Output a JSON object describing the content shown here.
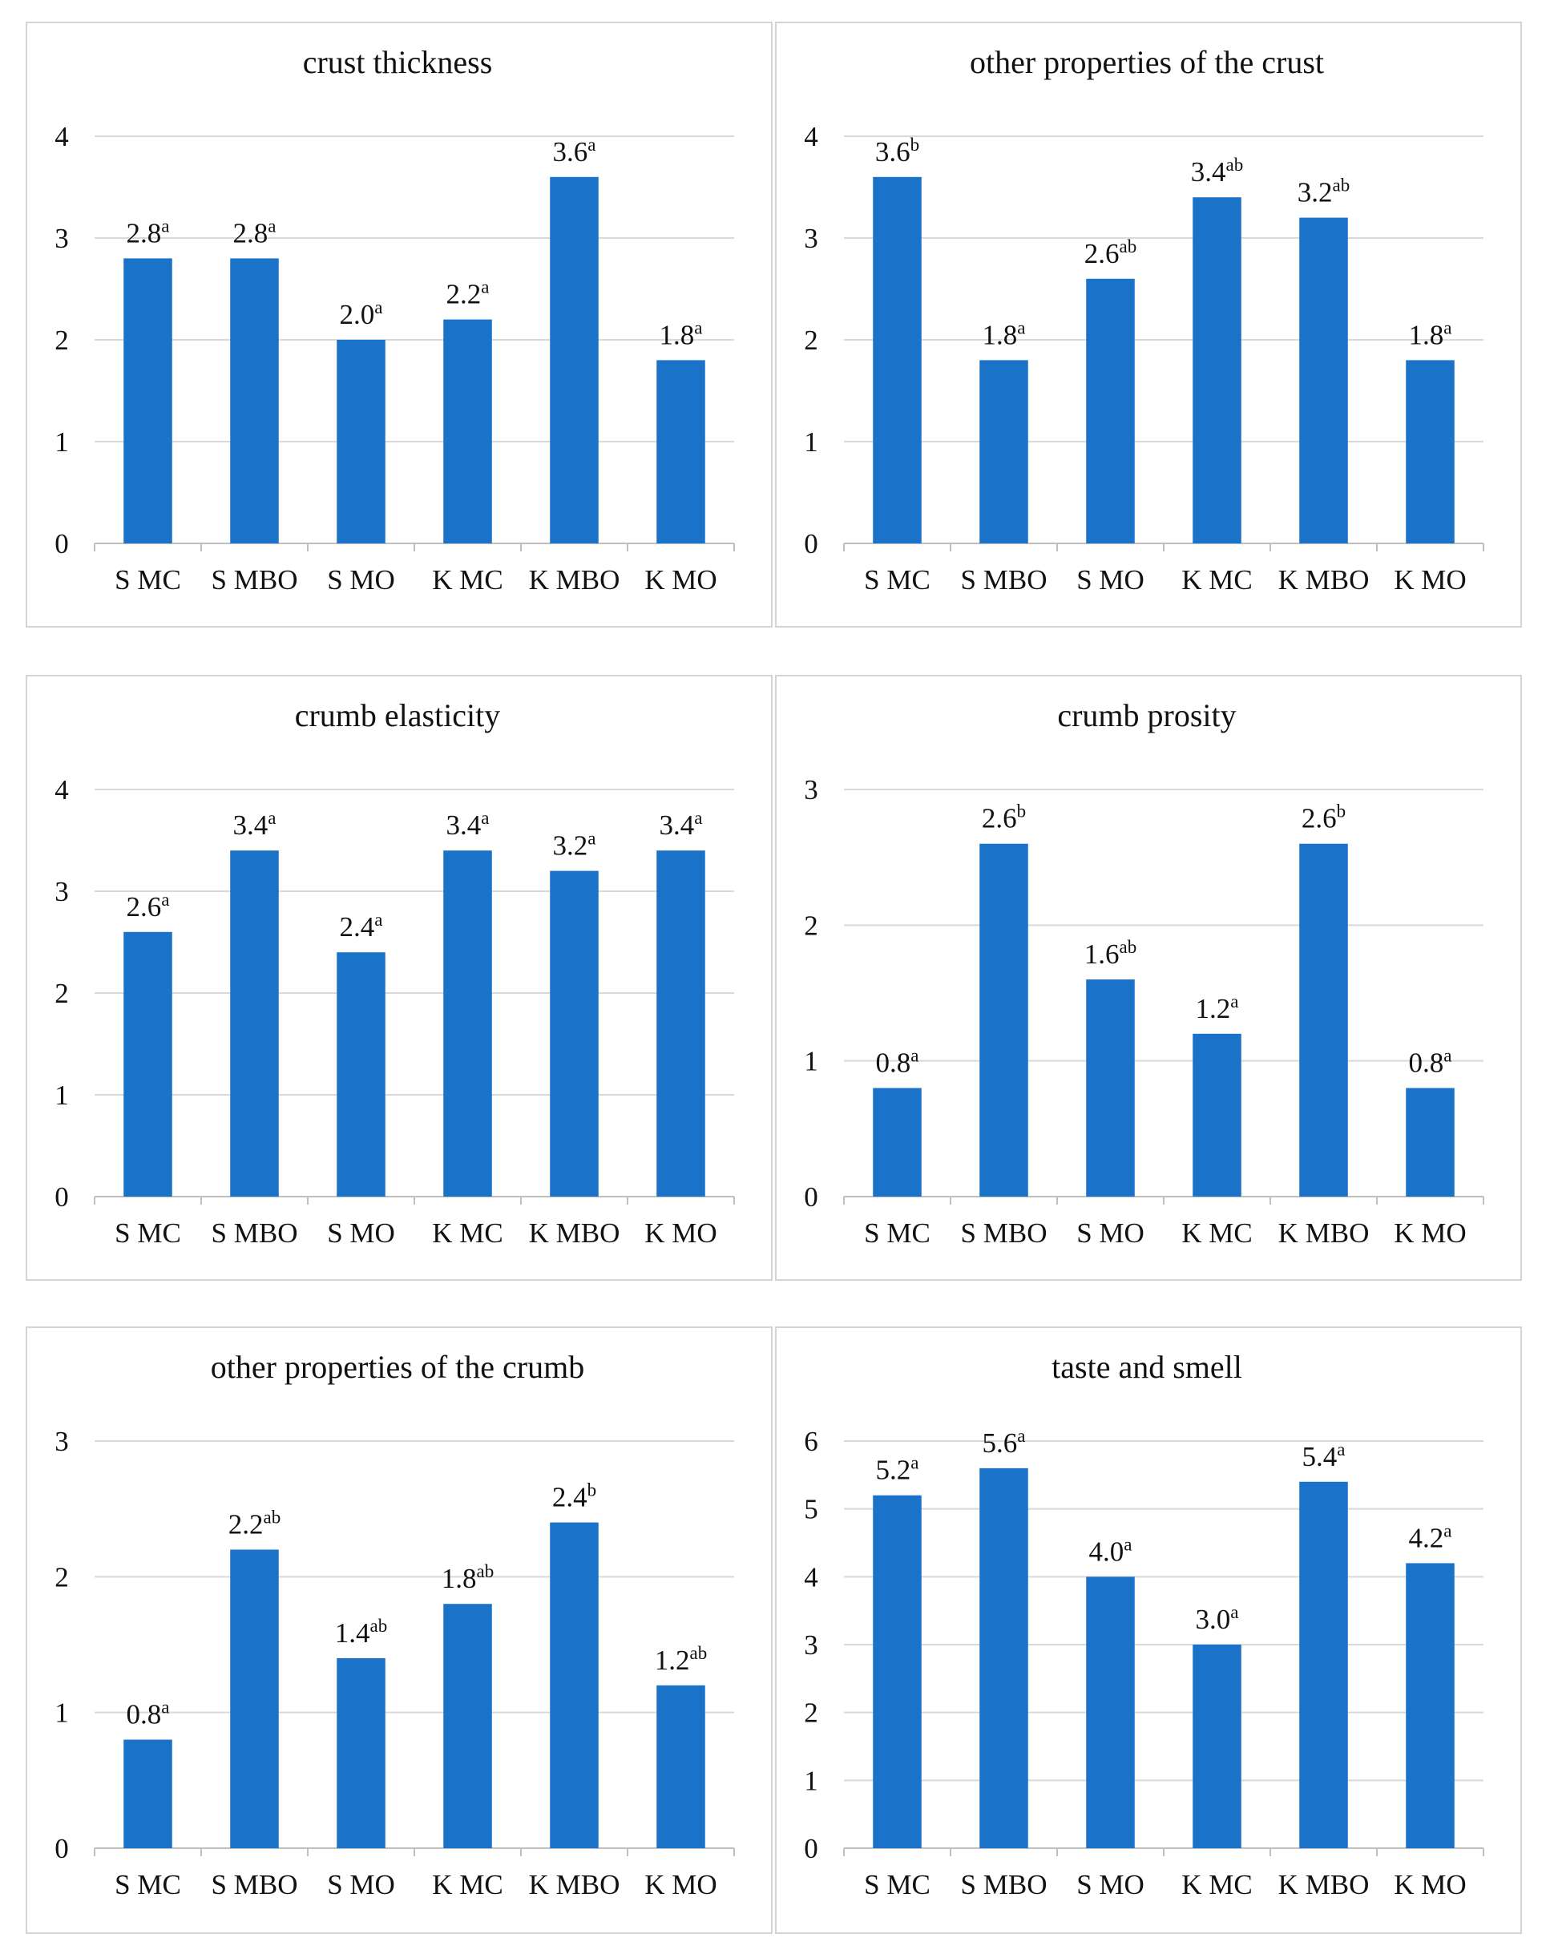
{
  "chart_data": [
    {
      "type": "bar",
      "title": "crust thickness",
      "categories": [
        "S MC",
        "S MBO",
        "S MO",
        "K MC",
        "K MBO",
        "K MO"
      ],
      "values": [
        2.8,
        2.8,
        2.0,
        2.2,
        3.6,
        1.8
      ],
      "labels": [
        "2.8",
        "2.8",
        "2.0",
        "2.2",
        "3.6",
        "1.8"
      ],
      "significance": [
        "a",
        "a",
        "a",
        "a",
        "a",
        "a"
      ],
      "ylim": [
        0,
        4
      ],
      "yticks": [
        0,
        1,
        2,
        3,
        4
      ],
      "grid": true,
      "color": "#1a73c8"
    },
    {
      "type": "bar",
      "title": "other properties of the crust",
      "categories": [
        "S MC",
        "S MBO",
        "S MO",
        "K MC",
        "K MBO",
        "K MO"
      ],
      "values": [
        3.6,
        1.8,
        2.6,
        3.4,
        3.2,
        1.8
      ],
      "labels": [
        "3.6",
        "1.8",
        "2.6",
        "3.4",
        "3.2",
        "1.8"
      ],
      "significance": [
        "b",
        "a",
        "ab",
        "ab",
        "ab",
        "a"
      ],
      "ylim": [
        0,
        4
      ],
      "yticks": [
        0,
        1,
        2,
        3,
        4
      ],
      "grid": true,
      "color": "#1a73c8"
    },
    {
      "type": "bar",
      "title": "crumb elasticity",
      "categories": [
        "S MC",
        "S MBO",
        "S MO",
        "K MC",
        "K MBO",
        "K MO"
      ],
      "values": [
        2.6,
        3.4,
        2.4,
        3.4,
        3.2,
        3.4
      ],
      "labels": [
        "2.6",
        "3.4",
        "2.4",
        "3.4",
        "3.2",
        "3.4"
      ],
      "significance": [
        "a",
        "a",
        "a",
        "a",
        "a",
        "a"
      ],
      "ylim": [
        0,
        4
      ],
      "yticks": [
        0,
        1,
        2,
        3,
        4
      ],
      "grid": true,
      "color": "#1a73c8"
    },
    {
      "type": "bar",
      "title": "crumb prosity",
      "categories": [
        "S MC",
        "S MBO",
        "S MO",
        "K MC",
        "K MBO",
        "K MO"
      ],
      "values": [
        0.8,
        2.6,
        1.6,
        1.2,
        2.6,
        0.8
      ],
      "labels": [
        "0.8",
        "2.6",
        "1.6",
        "1.2",
        "2.6",
        "0.8"
      ],
      "significance": [
        "a",
        "b",
        "ab",
        "a",
        "b",
        "a"
      ],
      "ylim": [
        0,
        3
      ],
      "yticks": [
        0,
        1,
        2,
        3
      ],
      "grid": true,
      "color": "#1a73c8"
    },
    {
      "type": "bar",
      "title": "other properties of the crumb",
      "categories": [
        "S MC",
        "S MBO",
        "S MO",
        "K MC",
        "K MBO",
        "K MO"
      ],
      "values": [
        0.8,
        2.2,
        1.4,
        1.8,
        2.4,
        1.2
      ],
      "labels": [
        "0.8",
        "2.2",
        "1.4",
        "1.8",
        "2.4",
        "1.2"
      ],
      "significance": [
        "a",
        "ab",
        "ab",
        "ab",
        "b",
        "ab"
      ],
      "ylim": [
        0,
        3
      ],
      "yticks": [
        0,
        1,
        2,
        3
      ],
      "grid": true,
      "color": "#1a73c8"
    },
    {
      "type": "bar",
      "title": "taste and smell",
      "categories": [
        "S MC",
        "S MBO",
        "S MO",
        "K MC",
        "K MBO",
        "K MO"
      ],
      "values": [
        5.2,
        5.6,
        4.0,
        3.0,
        5.4,
        4.2
      ],
      "labels": [
        "5.2",
        "5.6",
        "4.0",
        "3.0",
        "5.4",
        "4.2"
      ],
      "significance": [
        "a",
        "a",
        "a",
        "a",
        "a",
        "a"
      ],
      "ylim": [
        0,
        6
      ],
      "yticks": [
        0,
        1,
        2,
        3,
        4,
        5,
        6
      ],
      "grid": true,
      "color": "#1a73c8"
    }
  ]
}
